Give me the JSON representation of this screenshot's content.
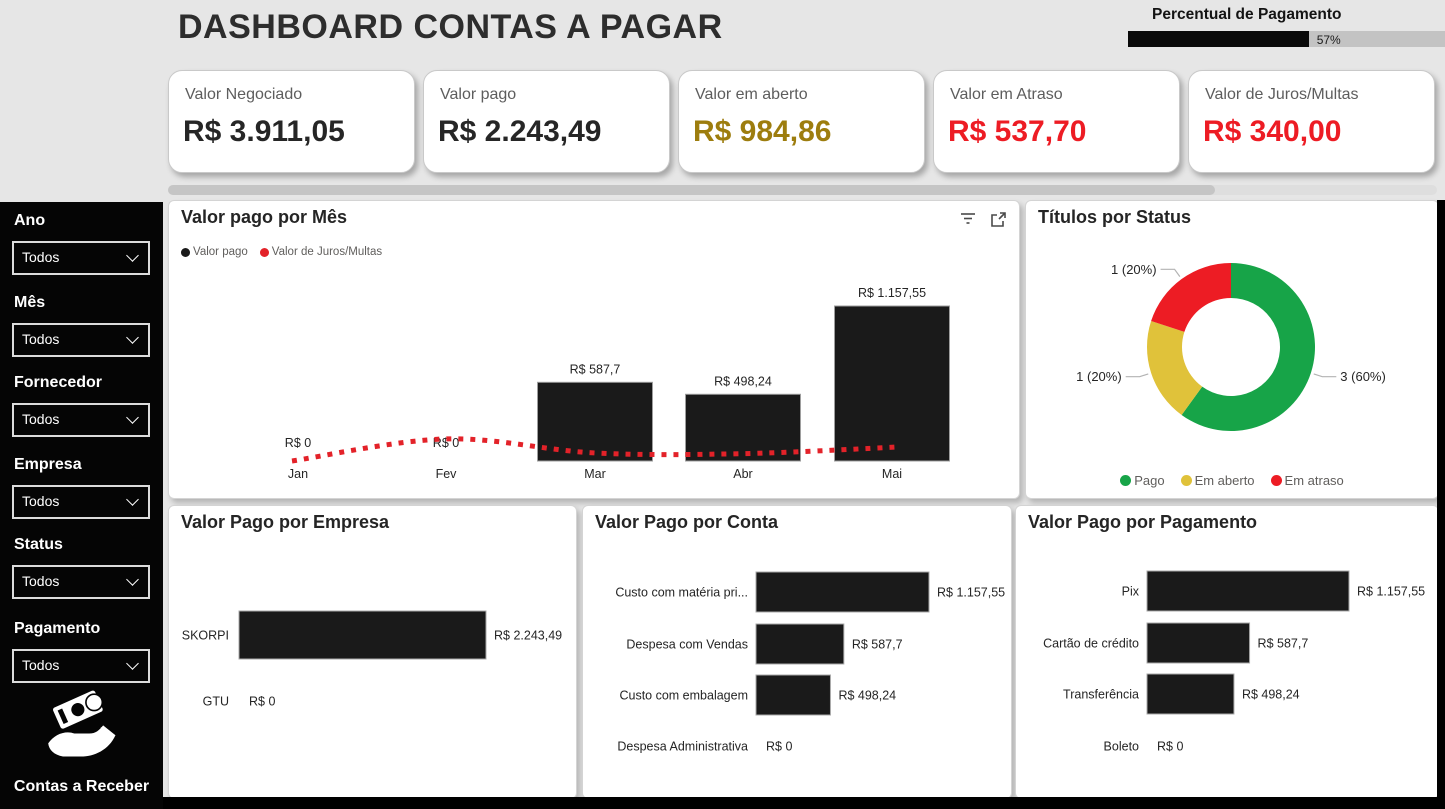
{
  "header": {
    "title": "DASHBOARD CONTAS A PAGAR",
    "gauge": {
      "title": "Percentual de Pagamento",
      "pct": 57,
      "label": "57%",
      "fill_color": "#0a0a0a"
    }
  },
  "kpis": [
    {
      "label": "Valor Negociado",
      "value": "R$ 3.911,05",
      "color": "#262626"
    },
    {
      "label": "Valor pago",
      "value": "R$ 2.243,49",
      "color": "#262626"
    },
    {
      "label": "Valor em aberto",
      "value": "R$ 984,86",
      "color": "#9d7d0e"
    },
    {
      "label": "Valor em Atraso",
      "value": "R$ 537,70",
      "color": "#ed1c24"
    },
    {
      "label": "Valor de Juros/Multas",
      "value": "R$ 340,00",
      "color": "#ed1c24"
    }
  ],
  "sidebar": {
    "filters": [
      {
        "label": "Ano",
        "value": "Todos"
      },
      {
        "label": "Mês",
        "value": "Todos"
      },
      {
        "label": "Fornecedor",
        "value": "Todos"
      },
      {
        "label": "Empresa",
        "value": "Todos"
      },
      {
        "label": "Status",
        "value": "Todos"
      },
      {
        "label": "Pagamento",
        "value": "Todos"
      }
    ],
    "button_label": "Contas a Receber",
    "button_icon": "money-hand-icon"
  },
  "chart_data": [
    {
      "type": "bar",
      "title": "Valor pago por Mês",
      "categories": [
        "Jan",
        "Fev",
        "Mar",
        "Abr",
        "Mai"
      ],
      "series": [
        {
          "name": "Valor pago",
          "kind": "column",
          "color": "#1a1a1a",
          "values": [
            0,
            0,
            587.7,
            498.24,
            1157.55
          ],
          "labels": [
            "R$ 0",
            "R$ 0",
            "R$ 587,7",
            "R$ 498,24",
            "R$ 1.157,55"
          ]
        },
        {
          "name": "Valor de Juros/Multas",
          "kind": "dotted-line",
          "color": "#e32229",
          "values_estimated": [
            0,
            165,
            60,
            55,
            105
          ]
        }
      ],
      "ylim": [
        0,
        1250
      ],
      "legend_position": "top-left"
    },
    {
      "type": "pie",
      "title": "Títulos por Status",
      "slices": [
        {
          "name": "Pago",
          "value": 3,
          "pct": 60,
          "label": "3 (60%)",
          "color": "#17a448"
        },
        {
          "name": "Em aberto",
          "value": 1,
          "pct": 20,
          "label": "1 (20%)",
          "color": "#e0c23a"
        },
        {
          "name": "Em atraso",
          "value": 1,
          "pct": 20,
          "label": "1 (20%)",
          "color": "#ed1c24"
        }
      ],
      "legend_position": "bottom"
    },
    {
      "type": "bar",
      "orientation": "horizontal",
      "title": "Valor Pago por Empresa",
      "categories": [
        "SKORPI",
        "GTU"
      ],
      "values": [
        2243.49,
        0
      ],
      "value_labels": [
        "R$ 2.243,49",
        "R$ 0"
      ],
      "bar_color": "#1a1a1a"
    },
    {
      "type": "bar",
      "orientation": "horizontal",
      "title": "Valor Pago por Conta",
      "categories": [
        "Custo com matéria pri...",
        "Despesa com Vendas",
        "Custo com embalagem",
        "Despesa Administrativa"
      ],
      "values": [
        1157.55,
        587.7,
        498.24,
        0
      ],
      "value_labels": [
        "R$ 1.157,55",
        "R$ 587,7",
        "R$ 498,24",
        "R$ 0"
      ],
      "bar_color": "#1a1a1a"
    },
    {
      "type": "bar",
      "orientation": "horizontal",
      "title": "Valor Pago por Pagamento",
      "categories": [
        "Pix",
        "Cartão de crédito",
        "Transferência",
        "Boleto"
      ],
      "values": [
        1157.55,
        587.7,
        498.24,
        0
      ],
      "value_labels": [
        "R$ 1.157,55",
        "R$ 587,7",
        "R$ 498,24",
        "R$ 0"
      ],
      "bar_color": "#1a1a1a"
    }
  ]
}
